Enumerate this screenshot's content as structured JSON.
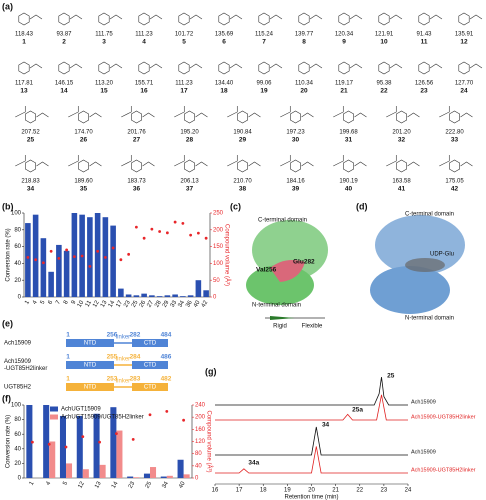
{
  "compounds": {
    "panel": "(a)",
    "items": [
      {
        "volume": "118.43",
        "id": "1"
      },
      {
        "volume": "93.87",
        "id": "2"
      },
      {
        "volume": "111.75",
        "id": "3"
      },
      {
        "volume": "111.23",
        "id": "4"
      },
      {
        "volume": "101.72",
        "id": "5"
      },
      {
        "volume": "135.69",
        "id": "6"
      },
      {
        "volume": "115.24",
        "id": "7"
      },
      {
        "volume": "139.77",
        "id": "8"
      },
      {
        "volume": "120.34",
        "id": "9"
      },
      {
        "volume": "121.91",
        "id": "10"
      },
      {
        "volume": "91.43",
        "id": "11"
      },
      {
        "volume": "135.91",
        "id": "12"
      },
      {
        "volume": "117.81",
        "id": "13"
      },
      {
        "volume": "146.15",
        "id": "14"
      },
      {
        "volume": "113.20",
        "id": "15"
      },
      {
        "volume": "155.71",
        "id": "16"
      },
      {
        "volume": "111.23",
        "id": "17"
      },
      {
        "volume": "134.40",
        "id": "18"
      },
      {
        "volume": "99.06",
        "id": "19"
      },
      {
        "volume": "110.34",
        "id": "20"
      },
      {
        "volume": "119.17",
        "id": "21"
      },
      {
        "volume": "95.38",
        "id": "22"
      },
      {
        "volume": "126.56",
        "id": "23"
      },
      {
        "volume": "127.70",
        "id": "24"
      },
      {
        "volume": "207.52",
        "id": "25"
      },
      {
        "volume": "174.70",
        "id": "26"
      },
      {
        "volume": "201.76",
        "id": "27"
      },
      {
        "volume": "195.20",
        "id": "28"
      },
      {
        "volume": "190.84",
        "id": "29"
      },
      {
        "volume": "197.23",
        "id": "30"
      },
      {
        "volume": "199.68",
        "id": "31"
      },
      {
        "volume": "201.20",
        "id": "32"
      },
      {
        "volume": "222.80",
        "id": "33"
      },
      {
        "volume": "218.83",
        "id": "34"
      },
      {
        "volume": "189.60",
        "id": "35"
      },
      {
        "volume": "183.73",
        "id": "36"
      },
      {
        "volume": "206.13",
        "id": "37"
      },
      {
        "volume": "210.70",
        "id": "38"
      },
      {
        "volume": "184.16",
        "id": "39"
      },
      {
        "volume": "190.19",
        "id": "40"
      },
      {
        "volume": "163.58",
        "id": "41"
      },
      {
        "volume": "175.05",
        "id": "42"
      }
    ]
  },
  "chart_data": [
    {
      "type": "bar",
      "panel": "(b)",
      "y_label": "Conversion rate (%)",
      "y2_label": "Compound volume (Å³)",
      "categories": [
        "1",
        "4",
        "5",
        "6",
        "7",
        "8",
        "9",
        "10",
        "11",
        "12",
        "13",
        "14",
        "17",
        "23",
        "25",
        "26",
        "27",
        "28",
        "29",
        "33",
        "34",
        "36",
        "40",
        "42"
      ],
      "series": [
        {
          "color": "#2a4fb0",
          "values": [
            88,
            98,
            70,
            30,
            62,
            55,
            100,
            98,
            95,
            100,
            95,
            85,
            10,
            3,
            2,
            4,
            2,
            1,
            2,
            3,
            1,
            2,
            20,
            8
          ]
        },
        {
          "color": "#e8262a",
          "axis": "y2",
          "values": [
            118,
            111,
            102,
            136,
            115,
            140,
            120,
            122,
            91,
            136,
            118,
            146,
            111,
            127,
            208,
            175,
            202,
            195,
            191,
            223,
            219,
            184,
            190,
            175
          ]
        }
      ],
      "ylim": [
        0,
        100
      ],
      "yticks": [
        0,
        20,
        40,
        60,
        80,
        100
      ],
      "y2lim": [
        0,
        250
      ],
      "y2ticks": [
        0,
        50,
        100,
        150,
        200,
        250
      ]
    },
    {
      "type": "bar",
      "panel": "(f)",
      "y_label": "Conversion rate (%)",
      "y2_label": "Compound volume (Å³)",
      "categories": [
        "1",
        "4",
        "5",
        "12",
        "13",
        "14",
        "23",
        "25",
        "34",
        "40"
      ],
      "series": [
        {
          "name": "AchUGT15909",
          "color": "#2a4fb0",
          "values": [
            100,
            100,
            85,
            85,
            88,
            97,
            2,
            6,
            2,
            25
          ]
        },
        {
          "name": "AchUGT15909/UGT85H2linker",
          "color": "#f28b8b",
          "values": [
            0,
            50,
            20,
            12,
            18,
            65,
            1,
            15,
            3,
            5
          ]
        },
        {
          "color": "#e8262a",
          "axis": "y2",
          "values": [
            118,
            111,
            102,
            136,
            118,
            146,
            127,
            208,
            219,
            190
          ]
        }
      ],
      "ylim": [
        0,
        100
      ],
      "yticks": [
        0,
        20,
        40,
        60,
        80,
        100
      ],
      "y2lim": [
        0,
        240
      ],
      "y2ticks": [
        0,
        40,
        80,
        120,
        160,
        200,
        240
      ]
    },
    {
      "type": "line",
      "panel": "(g)",
      "x_label": "Retention time (min)",
      "xlim": [
        16,
        24
      ],
      "xticks": [
        16,
        17,
        18,
        19,
        20,
        21,
        22,
        23,
        24
      ],
      "series": [
        {
          "name": "Ach15909",
          "color": "#111111",
          "x": [
            16,
            22.6,
            22.8,
            22.9,
            23.0,
            23.2,
            24
          ],
          "values": [
            0,
            0,
            40,
            100,
            30,
            0,
            0
          ]
        },
        {
          "name": "Ach15909-UGT85H2linker",
          "color": "#e02020",
          "x": [
            16,
            21.3,
            21.5,
            21.7,
            22.7,
            22.9,
            23.1,
            24
          ],
          "values": [
            0,
            0,
            20,
            0,
            0,
            90,
            0,
            0
          ]
        },
        {
          "name": "Ach15909",
          "color": "#111111",
          "x": [
            16,
            20.0,
            20.2,
            20.4,
            24
          ],
          "values": [
            0,
            0,
            100,
            0,
            0
          ]
        },
        {
          "name": "Ach15909-UGT85H2linker",
          "color": "#e02020",
          "x": [
            16,
            17.0,
            17.2,
            17.4,
            20.0,
            20.2,
            20.4,
            24
          ],
          "values": [
            0,
            0,
            15,
            0,
            0,
            95,
            0,
            0
          ]
        }
      ],
      "annotations": [
        "25",
        "25a",
        "34",
        "34a"
      ]
    }
  ],
  "panel_c": {
    "panel": "(c)",
    "labels": [
      "C-terminal domain",
      "Val256",
      "Glu282",
      "N-terminal domain"
    ],
    "scale": [
      "Rigid",
      "Flexible"
    ]
  },
  "panel_d": {
    "panel": "(d)",
    "labels": [
      "C-terminal domain",
      "UDP-Glu",
      "N-terminal domain"
    ]
  },
  "panel_e": {
    "panel": "(e)",
    "constructs": [
      {
        "name": [
          "Ach15909"
        ],
        "start": 1,
        "ntd": "NTD",
        "ntd_end": 256,
        "linker": "linker",
        "linker_end": 282,
        "ctd": "CTD",
        "end": 484
      },
      {
        "name": [
          "Ach15909",
          "-UGT85H2linker"
        ],
        "start": 1,
        "ntd": "NTD",
        "ntd_end": 255,
        "linker": "linker",
        "linker_end": 284,
        "ctd": "CTD",
        "end": 486
      },
      {
        "name": [
          "UGT85H2"
        ],
        "start": 1,
        "ntd": "NTD",
        "ntd_end": 253,
        "linker": "linker",
        "linker_end": 283,
        "ctd": "CTD",
        "end": 482
      }
    ]
  }
}
